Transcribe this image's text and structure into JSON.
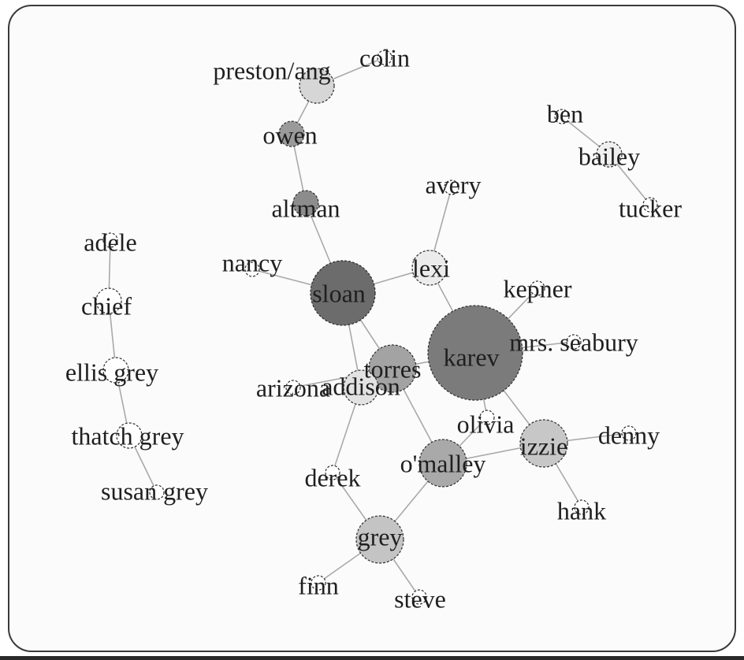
{
  "graph": {
    "nodes": [
      {
        "id": "cristina",
        "label": "preston/ang",
        "size": 2,
        "shade": "#d6d6d6"
      },
      {
        "id": "colin",
        "label": "colin",
        "size": 0,
        "shade": "#ffffff"
      },
      {
        "id": "owen",
        "label": "owen",
        "size": 1,
        "shade": "#9a9a9a"
      },
      {
        "id": "altman",
        "label": "altman",
        "size": 1,
        "shade": "#8c8c8c"
      },
      {
        "id": "sloan",
        "label": "sloan",
        "size": 5,
        "shade": "#6c6c6c"
      },
      {
        "id": "nancy",
        "label": "nancy",
        "size": 0,
        "shade": "#ffffff"
      },
      {
        "id": "lexi",
        "label": "lexi",
        "size": 2,
        "shade": "#ececec"
      },
      {
        "id": "avery",
        "label": "avery",
        "size": 0,
        "shade": "#ffffff"
      },
      {
        "id": "karev",
        "label": "karev",
        "size": 8,
        "shade": "#7b7b7b"
      },
      {
        "id": "kepner",
        "label": "kepner",
        "size": 0,
        "shade": "#ffffff"
      },
      {
        "id": "mrs_seabury",
        "label": "mrs. seabury",
        "size": 0,
        "shade": "#ffffff"
      },
      {
        "id": "torres",
        "label": "torres",
        "size": 3,
        "shade": "#a3a3a3"
      },
      {
        "id": "addison",
        "label": "addison",
        "size": 2,
        "shade": "#e2e2e2"
      },
      {
        "id": "arizona",
        "label": "arizona",
        "size": 0,
        "shade": "#ffffff"
      },
      {
        "id": "olivia",
        "label": "olivia",
        "size": 0,
        "shade": "#ffffff"
      },
      {
        "id": "izzie",
        "label": "izzie",
        "size": 3,
        "shade": "#c7c7c7"
      },
      {
        "id": "denny",
        "label": "denny",
        "size": 0,
        "shade": "#ffffff"
      },
      {
        "id": "hank",
        "label": "hank",
        "size": 0,
        "shade": "#ffffff"
      },
      {
        "id": "omalley",
        "label": "o'malley",
        "size": 3,
        "shade": "#a9a9a9"
      },
      {
        "id": "derek",
        "label": "derek",
        "size": 0,
        "shade": "#ffffff"
      },
      {
        "id": "grey",
        "label": "grey",
        "size": 3,
        "shade": "#c4c4c4"
      },
      {
        "id": "finn",
        "label": "finn",
        "size": 0,
        "shade": "#ffffff"
      },
      {
        "id": "steve",
        "label": "steve",
        "size": 0,
        "shade": "#ffffff"
      },
      {
        "id": "ben",
        "label": "ben",
        "size": 0,
        "shade": "#ffffff"
      },
      {
        "id": "bailey",
        "label": "bailey",
        "size": 1,
        "shade": "#f0f0f0"
      },
      {
        "id": "tucker",
        "label": "tucker",
        "size": 0,
        "shade": "#ffffff"
      },
      {
        "id": "adele",
        "label": "adele",
        "size": 0,
        "shade": "#ffffff"
      },
      {
        "id": "chief",
        "label": "chief",
        "size": 1,
        "shade": "#ffffff"
      },
      {
        "id": "ellis_grey",
        "label": "ellis grey",
        "size": 1,
        "shade": "#ffffff"
      },
      {
        "id": "thatch_grey",
        "label": "thatch grey",
        "size": 1,
        "shade": "#ffffff"
      },
      {
        "id": "susan_grey",
        "label": "susan grey",
        "size": 0,
        "shade": "#ffffff"
      }
    ],
    "edges": [
      [
        "cristina",
        "colin"
      ],
      [
        "cristina",
        "owen"
      ],
      [
        "owen",
        "altman"
      ],
      [
        "altman",
        "sloan"
      ],
      [
        "nancy",
        "sloan"
      ],
      [
        "sloan",
        "lexi"
      ],
      [
        "lexi",
        "avery"
      ],
      [
        "lexi",
        "karev"
      ],
      [
        "sloan",
        "torres"
      ],
      [
        "sloan",
        "addison"
      ],
      [
        "karev",
        "kepner"
      ],
      [
        "karev",
        "mrs_seabury"
      ],
      [
        "karev",
        "izzie"
      ],
      [
        "karev",
        "olivia"
      ],
      [
        "karev",
        "torres"
      ],
      [
        "torres",
        "addison"
      ],
      [
        "torres",
        "omalley"
      ],
      [
        "arizona",
        "torres"
      ],
      [
        "addison",
        "derek"
      ],
      [
        "omalley",
        "olivia"
      ],
      [
        "omalley",
        "izzie"
      ],
      [
        "omalley",
        "grey"
      ],
      [
        "izzie",
        "denny"
      ],
      [
        "izzie",
        "hank"
      ],
      [
        "derek",
        "grey"
      ],
      [
        "grey",
        "finn"
      ],
      [
        "grey",
        "steve"
      ],
      [
        "ben",
        "bailey"
      ],
      [
        "bailey",
        "tucker"
      ],
      [
        "adele",
        "chief"
      ],
      [
        "chief",
        "ellis_grey"
      ],
      [
        "ellis_grey",
        "thatch_grey"
      ],
      [
        "thatch_grey",
        "susan_grey"
      ]
    ]
  }
}
